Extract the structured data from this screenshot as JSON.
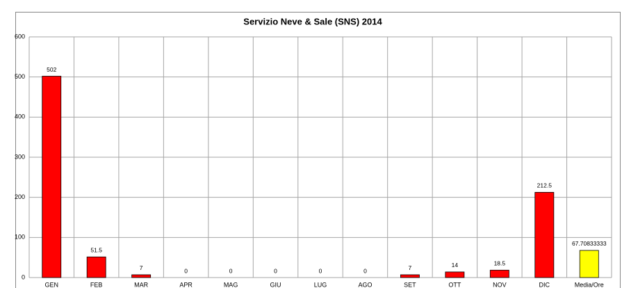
{
  "chart_data": {
    "type": "bar",
    "title": "Servizio Neve & Sale (SNS) 2014",
    "categories": [
      "GEN",
      "FEB",
      "MAR",
      "APR",
      "MAG",
      "GIU",
      "LUG",
      "AGO",
      "SET",
      "OTT",
      "NOV",
      "DIC",
      "Media/Ore"
    ],
    "values": [
      502,
      51.5,
      7,
      0,
      0,
      0,
      0,
      0,
      7,
      14,
      18.5,
      212.5,
      67.70833333
    ],
    "colors": [
      "#ff0000",
      "#ff0000",
      "#ff0000",
      "#ff0000",
      "#ff0000",
      "#ff0000",
      "#ff0000",
      "#ff0000",
      "#ff0000",
      "#ff0000",
      "#ff0000",
      "#ff0000",
      "#ffff00"
    ],
    "ylim": [
      0,
      600
    ],
    "yticks": [
      0,
      100,
      200,
      300,
      400,
      500,
      600
    ],
    "grid": true
  }
}
